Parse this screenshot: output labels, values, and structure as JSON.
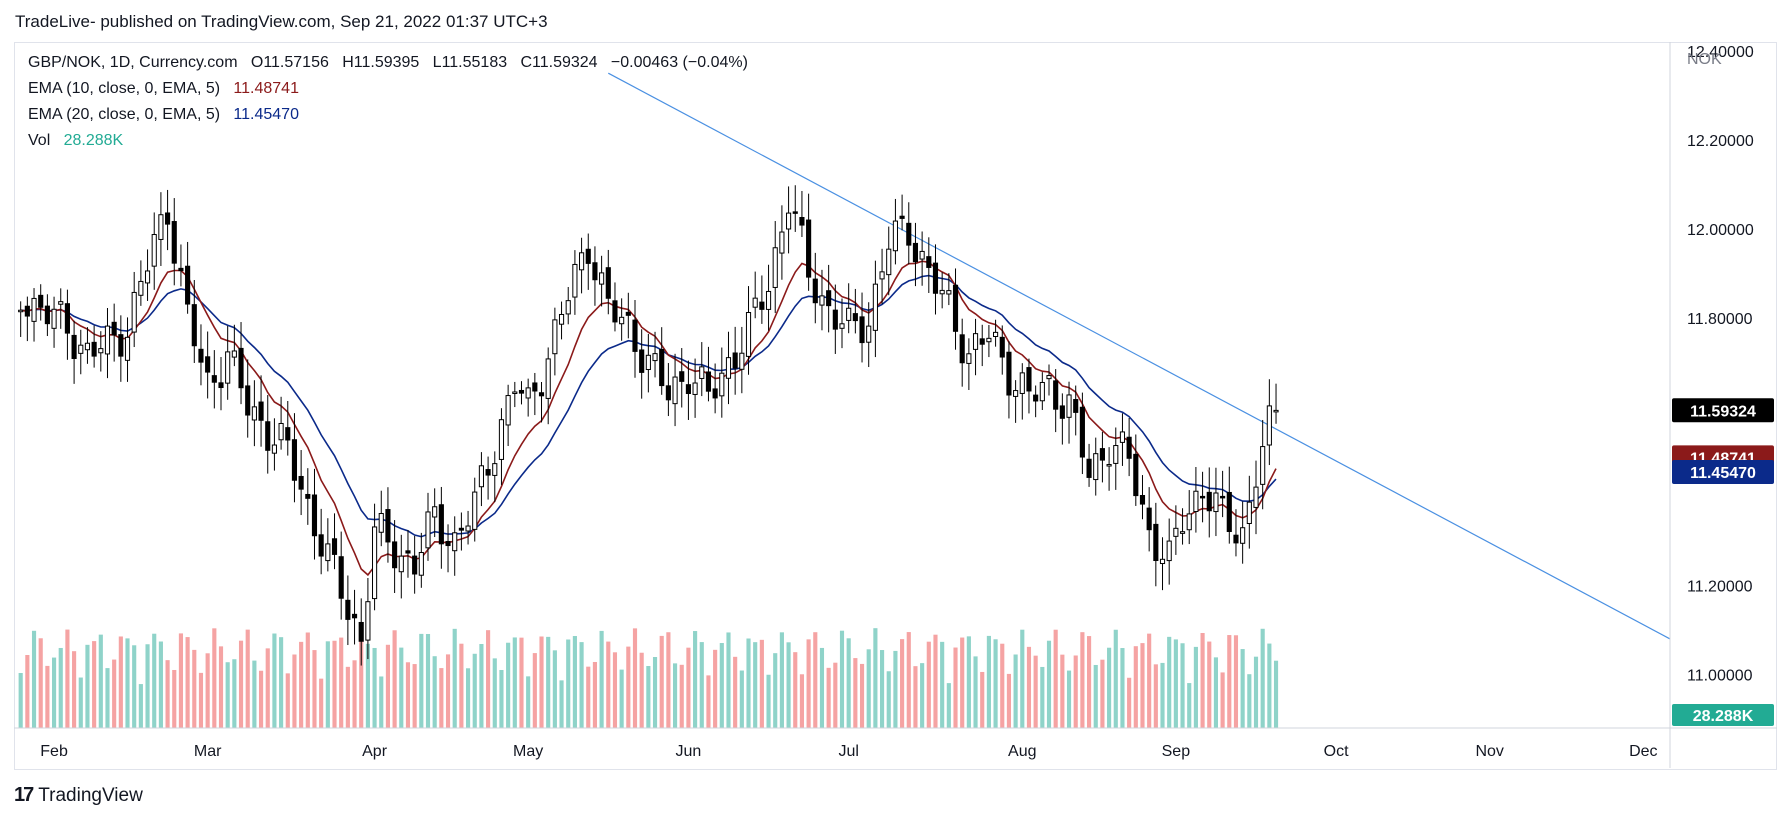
{
  "header": {
    "publisher_text": "TradeLive- published on TradingView.com, Sep 21, 2022 01:37 UTC+3"
  },
  "legend": {
    "symbol_line": "GBP/NOK, 1D, Currency.com",
    "ohlc": {
      "o": "O11.57156",
      "h": "H11.59395",
      "l": "L11.55183",
      "c": "C11.59324",
      "chg": "−0.00463 (−0.04%)"
    },
    "ema10_label": "EMA (10, close, 0, EMA, 5)",
    "ema10_value": "11.48741",
    "ema20_label": "EMA (20, close, 0, EMA, 5)",
    "ema20_value": "11.45470",
    "vol_label": "Vol",
    "vol_value": "28.288K"
  },
  "footer": {
    "logo_text": "TradingView"
  },
  "colors": {
    "ema10": "#8b1a1a",
    "ema20": "#0b2a8a",
    "trendline": "#4a90e2",
    "vol_up": "#8fd3c9",
    "vol_down": "#f5a3a3",
    "last_price_bg": "#000000",
    "vol_badge_bg": "#22ab94"
  },
  "chart_data": {
    "type": "candlestick",
    "currency_label": "NOK",
    "y_ticks": [
      "11.00000",
      "11.20000",
      "11.80000",
      "12.00000",
      "12.20000",
      "12.40000"
    ],
    "ylim": [
      10.88,
      12.42
    ],
    "x_ticks": [
      "Feb",
      "Mar",
      "Apr",
      "May",
      "Jun",
      "Jul",
      "Aug",
      "Sep",
      "Oct",
      "Nov",
      "Dec"
    ],
    "x_tick_days": [
      0,
      23,
      48,
      71,
      95,
      119,
      145,
      168,
      192,
      215,
      238
    ],
    "x_range_days": [
      -6,
      242
    ],
    "last_date_day": 183,
    "last_price_label": "11.59324",
    "ema10_badge": "11.48741",
    "ema20_badge": "11.45470",
    "volume_badge": "28.288K",
    "close_anchors": [
      [
        -5,
        11.85
      ],
      [
        -2,
        11.82
      ],
      [
        2,
        11.78
      ],
      [
        5,
        11.72
      ],
      [
        8,
        11.74
      ],
      [
        11,
        11.78
      ],
      [
        14,
        11.92
      ],
      [
        17,
        12.05
      ],
      [
        20,
        11.8
      ],
      [
        23,
        11.65
      ],
      [
        26,
        11.72
      ],
      [
        29,
        11.6
      ],
      [
        32,
        11.55
      ],
      [
        35,
        11.5
      ],
      [
        38,
        11.38
      ],
      [
        41,
        11.26
      ],
      [
        44,
        11.15
      ],
      [
        46,
        11.08
      ],
      [
        48,
        11.32
      ],
      [
        51,
        11.28
      ],
      [
        54,
        11.25
      ],
      [
        57,
        11.35
      ],
      [
        60,
        11.3
      ],
      [
        63,
        11.38
      ],
      [
        66,
        11.52
      ],
      [
        69,
        11.65
      ],
      [
        71,
        11.6
      ],
      [
        74,
        11.72
      ],
      [
        77,
        11.85
      ],
      [
        80,
        11.97
      ],
      [
        83,
        11.82
      ],
      [
        86,
        11.78
      ],
      [
        89,
        11.7
      ],
      [
        92,
        11.63
      ],
      [
        95,
        11.68
      ],
      [
        98,
        11.62
      ],
      [
        101,
        11.7
      ],
      [
        104,
        11.77
      ],
      [
        107,
        11.88
      ],
      [
        110,
        12.07
      ],
      [
        113,
        11.9
      ],
      [
        116,
        11.82
      ],
      [
        119,
        11.77
      ],
      [
        122,
        11.8
      ],
      [
        125,
        11.97
      ],
      [
        128,
        12.0
      ],
      [
        131,
        11.9
      ],
      [
        134,
        11.82
      ],
      [
        137,
        11.72
      ],
      [
        140,
        11.76
      ],
      [
        143,
        11.68
      ],
      [
        146,
        11.62
      ],
      [
        149,
        11.65
      ],
      [
        152,
        11.6
      ],
      [
        155,
        11.45
      ],
      [
        158,
        11.52
      ],
      [
        161,
        11.48
      ],
      [
        164,
        11.32
      ],
      [
        167,
        11.25
      ],
      [
        169,
        11.35
      ],
      [
        172,
        11.42
      ],
      [
        175,
        11.35
      ],
      [
        178,
        11.32
      ],
      [
        180,
        11.45
      ],
      [
        182,
        11.55
      ],
      [
        183,
        11.593
      ]
    ],
    "trendline": {
      "from": [
        83,
        12.35
      ],
      "to": [
        242,
        11.08
      ]
    }
  }
}
